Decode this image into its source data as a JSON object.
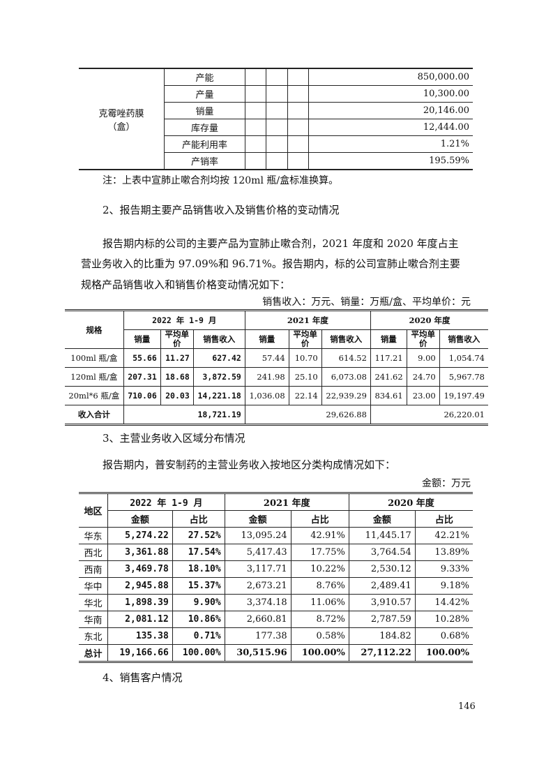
{
  "capacity_table": {
    "product": "克霉唑药膜",
    "unit": "（盒）",
    "rows": [
      {
        "label": "产能",
        "value": "850,000.00"
      },
      {
        "label": "产量",
        "value": "10,300.00"
      },
      {
        "label": "销量",
        "value": "20,146.00"
      },
      {
        "label": "库存量",
        "value": "12,444.00"
      },
      {
        "label": "产能利用率",
        "value": "1.21%"
      },
      {
        "label": "产销率",
        "value": "195.59%"
      }
    ]
  },
  "note": "注：上表中宣肺止嗽合剂均按 120ml 瓶/盒标准换算。",
  "heading2": "2、报告期主要产品销售收入及销售价格的变动情况",
  "para2": [
    "报告期内标的公司的主要产品为宣肺止嗽合剂，2021 年度和 2020 年度占主",
    "营业务收入的比重为 97.09%和 96.71%。报告期内，标的公司宣肺止嗽合剂主要",
    "规格产品销售收入和销售价格变动情况如下："
  ],
  "unit2": "销售收入：万元、销量：万瓶/盒、平均单价：元",
  "sales_table": {
    "spec_header": "规格",
    "periods": [
      "2022 年 1-9 月",
      "2021 年度",
      "2020 年度"
    ],
    "subheaders": [
      "销量",
      "平均单价",
      "销售收入"
    ],
    "rows": [
      [
        "100ml 瓶/盒",
        "55.66",
        "11.27",
        "627.42",
        "57.44",
        "10.70",
        "614.52",
        "117.21",
        "9.00",
        "1,054.74"
      ],
      [
        "120ml 瓶/盒",
        "207.31",
        "18.68",
        "3,872.59",
        "241.98",
        "25.10",
        "6,073.08",
        "241.62",
        "24.70",
        "5,967.78"
      ],
      [
        "20ml*6 瓶/盒",
        "710.06",
        "20.03",
        "14,221.18",
        "1,036.08",
        "22.14",
        "22,939.29",
        "834.61",
        "23.00",
        "19,197.49"
      ]
    ],
    "total": [
      "收入合计",
      "18,721.19",
      "29,626.88",
      "26,220.01"
    ]
  },
  "heading3": "3、主营业务收入区域分布情况",
  "para3": "报告期内，普安制药的主营业务收入按地区分类构成情况如下：",
  "unit3": "金额：万元",
  "region_table": {
    "region_header": "地区",
    "periods": [
      "2022 年 1-9 月",
      "2021 年度",
      "2020 年度"
    ],
    "subheaders": [
      "金额",
      "占比"
    ],
    "rows": [
      [
        "华东",
        "5,274.22",
        "27.52%",
        "13,095.24",
        "42.91%",
        "11,445.17",
        "42.21%"
      ],
      [
        "西北",
        "3,361.88",
        "17.54%",
        "5,417.43",
        "17.75%",
        "3,764.54",
        "13.89%"
      ],
      [
        "西南",
        "3,469.78",
        "18.10%",
        "3,117.71",
        "10.22%",
        "2,530.12",
        "9.33%"
      ],
      [
        "华中",
        "2,945.88",
        "15.37%",
        "2,673.21",
        "8.76%",
        "2,489.41",
        "9.18%"
      ],
      [
        "华北",
        "1,898.39",
        "9.90%",
        "3,374.18",
        "11.06%",
        "3,910.57",
        "14.42%"
      ],
      [
        "华南",
        "2,081.12",
        "10.86%",
        "2,660.81",
        "8.72%",
        "2,787.59",
        "10.28%"
      ],
      [
        "东北",
        "135.38",
        "0.71%",
        "177.38",
        "0.58%",
        "184.82",
        "0.68%"
      ],
      [
        "总计",
        "19,166.66",
        "100.00%",
        "30,515.96",
        "100.00%",
        "27,112.22",
        "100.00%"
      ]
    ]
  },
  "heading4": "4、销售客户情况",
  "page_number": "146"
}
